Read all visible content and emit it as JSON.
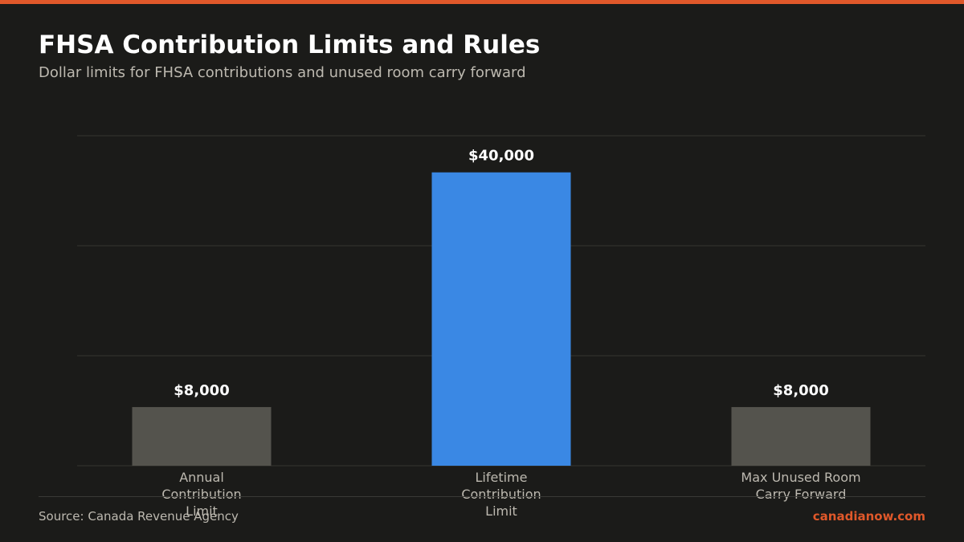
{
  "header": {
    "title": "FHSA Contribution Limits and Rules",
    "subtitle": "Dollar limits for FHSA contributions and unused room carry forward"
  },
  "footer": {
    "source": "Source: Canada Revenue Agency",
    "brand": "canadianow.com"
  },
  "colors": {
    "accent": "#e0582a",
    "highlight_bar": "#3a88e4",
    "default_bar": "#54534d",
    "background": "#1b1b19"
  },
  "chart_data": {
    "type": "bar",
    "categories": [
      [
        "Annual",
        "Contribution",
        "Limit"
      ],
      [
        "Lifetime",
        "Contribution",
        "Limit"
      ],
      [
        "Max Unused Room",
        "Carry Forward"
      ]
    ],
    "values": [
      8000,
      40000,
      8000
    ],
    "value_labels": [
      "$8,000",
      "$40,000",
      "$8,000"
    ],
    "highlight_index": 1,
    "ylim": [
      0,
      45000
    ],
    "gridlines": [
      0,
      15000,
      30000,
      45000
    ],
    "grid": true,
    "legend": "none"
  }
}
